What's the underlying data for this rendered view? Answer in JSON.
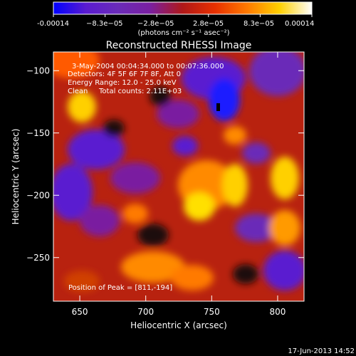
{
  "colorbar": {
    "tick_labels": [
      "-0.00014",
      "−8.3e−05",
      "−2.8e−05",
      "2.8e−05",
      "8.3e−05",
      "0.00014"
    ],
    "unit_label": "(photons cm⁻² s⁻¹ asec⁻²)",
    "stops": [
      "#0000ff",
      "#5a1bd0",
      "#6a2bb8",
      "#7a1fa0",
      "#b01818",
      "#e83000",
      "#ff7a00",
      "#ffd000",
      "#ffffff"
    ]
  },
  "info": {
    "time_range": "3-May-2004 00:04:34.000 to 00:07:36.000",
    "detectors": "Detectors: 4F 5F 6F 7F 8F, Att 0",
    "energy_range": "Energy Range: 12.0 - 25.0 keV",
    "algorithm": "Clean",
    "total_counts": "Total counts: 2.11E+03",
    "peak_position": "Position of Peak = [811,-194]"
  },
  "timestamp": "17-Jun-2013 14:52",
  "chart_data": {
    "type": "heatmap",
    "title": "Reconstructed RHESSI Image",
    "xlabel": "Heliocentric X (arcsec)",
    "ylabel": "Heliocentric Y (arcsec)",
    "xlim": [
      630,
      820
    ],
    "ylim": [
      -285,
      -85
    ],
    "x_ticks": [
      650,
      700,
      750,
      800
    ],
    "y_ticks": [
      -100,
      -150,
      -200,
      -250
    ],
    "color_range": [
      -0.00014,
      0.00014
    ],
    "peak": {
      "x": 811,
      "y": -194
    },
    "grid": false
  }
}
